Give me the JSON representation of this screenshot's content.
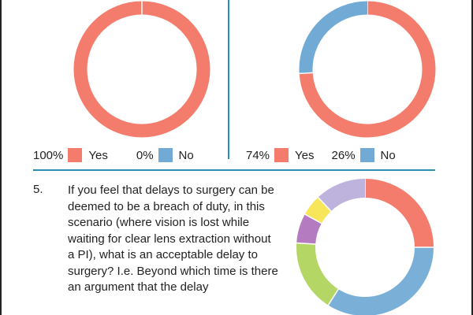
{
  "chart_data": [
    {
      "type": "pie",
      "donut": true,
      "categories": [
        "Yes",
        "No"
      ],
      "values": [
        100,
        0
      ],
      "labels": [
        "100%",
        "0%"
      ],
      "colors": [
        "#f47c6c",
        "#72aad6"
      ]
    },
    {
      "type": "pie",
      "donut": true,
      "categories": [
        "Yes",
        "No"
      ],
      "values": [
        74,
        26
      ],
      "labels": [
        "74%",
        "26%"
      ],
      "colors": [
        "#f47c6c",
        "#72aad6"
      ]
    },
    {
      "type": "pie",
      "donut": true,
      "values": [
        25,
        34,
        17,
        7,
        5,
        12
      ],
      "colors": [
        "#f47c6c",
        "#7ab0d8",
        "#b4d665",
        "#b57bc1",
        "#f8e65a",
        "#bdb3dc"
      ]
    }
  ],
  "question": {
    "number": "5.",
    "text": "If you feel that delays to surgery can be deemed to be a breach of duty, in this scenario (where vision is lost while waiting for clear lens extraction without a PI), what is an acceptable delay to surgery? I.e. Beyond which time is there an argument that the delay"
  },
  "colors": {
    "divider": "#2a8fb0"
  }
}
